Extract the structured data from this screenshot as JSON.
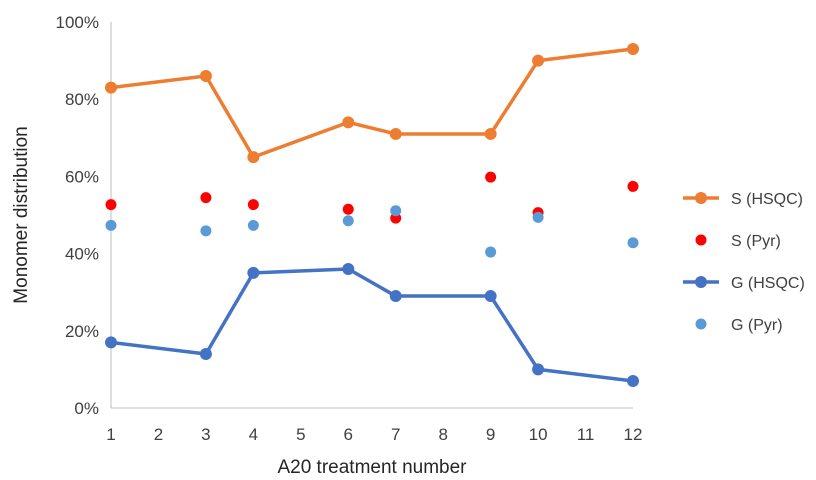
{
  "chart_data": {
    "type": "line",
    "title": "",
    "xlabel": "A20 treatment number",
    "ylabel": "Monomer distribution",
    "xlim": [
      1,
      12
    ],
    "ylim": [
      0,
      100
    ],
    "x_ticks": [
      "1",
      "2",
      "3",
      "4",
      "5",
      "6",
      "7",
      "8",
      "9",
      "10",
      "11",
      "12"
    ],
    "y_ticks": [
      "0%",
      "20%",
      "40%",
      "60%",
      "80%",
      "100%"
    ],
    "grid": false,
    "legend_position": "right",
    "series": [
      {
        "name": "S (HSQC)",
        "mode": "line+markers",
        "color": "#ED7D31",
        "x": [
          1,
          3,
          4,
          6,
          7,
          9,
          10,
          12
        ],
        "y": [
          83,
          86,
          65,
          74,
          71,
          71,
          90,
          93
        ]
      },
      {
        "name": "S (Pyr)",
        "mode": "markers",
        "color": "#FF0000",
        "x": [
          1,
          3,
          4,
          6,
          7,
          9,
          10,
          12
        ],
        "y": [
          52.7,
          54.5,
          52.7,
          51.5,
          49.2,
          59.8,
          50.6,
          57.4
        ]
      },
      {
        "name": "G (HSQC)",
        "mode": "line+markers",
        "color": "#4472C4",
        "x": [
          1,
          3,
          4,
          6,
          7,
          9,
          10,
          12
        ],
        "y": [
          17,
          14,
          35,
          36,
          29,
          29,
          10,
          7
        ]
      },
      {
        "name": "G (Pyr)",
        "mode": "markers",
        "color": "#5B9BD5",
        "x": [
          1,
          3,
          4,
          6,
          7,
          9,
          10,
          12
        ],
        "y": [
          47.3,
          45.9,
          47.3,
          48.5,
          51.1,
          40.4,
          49.4,
          42.8
        ]
      }
    ]
  }
}
